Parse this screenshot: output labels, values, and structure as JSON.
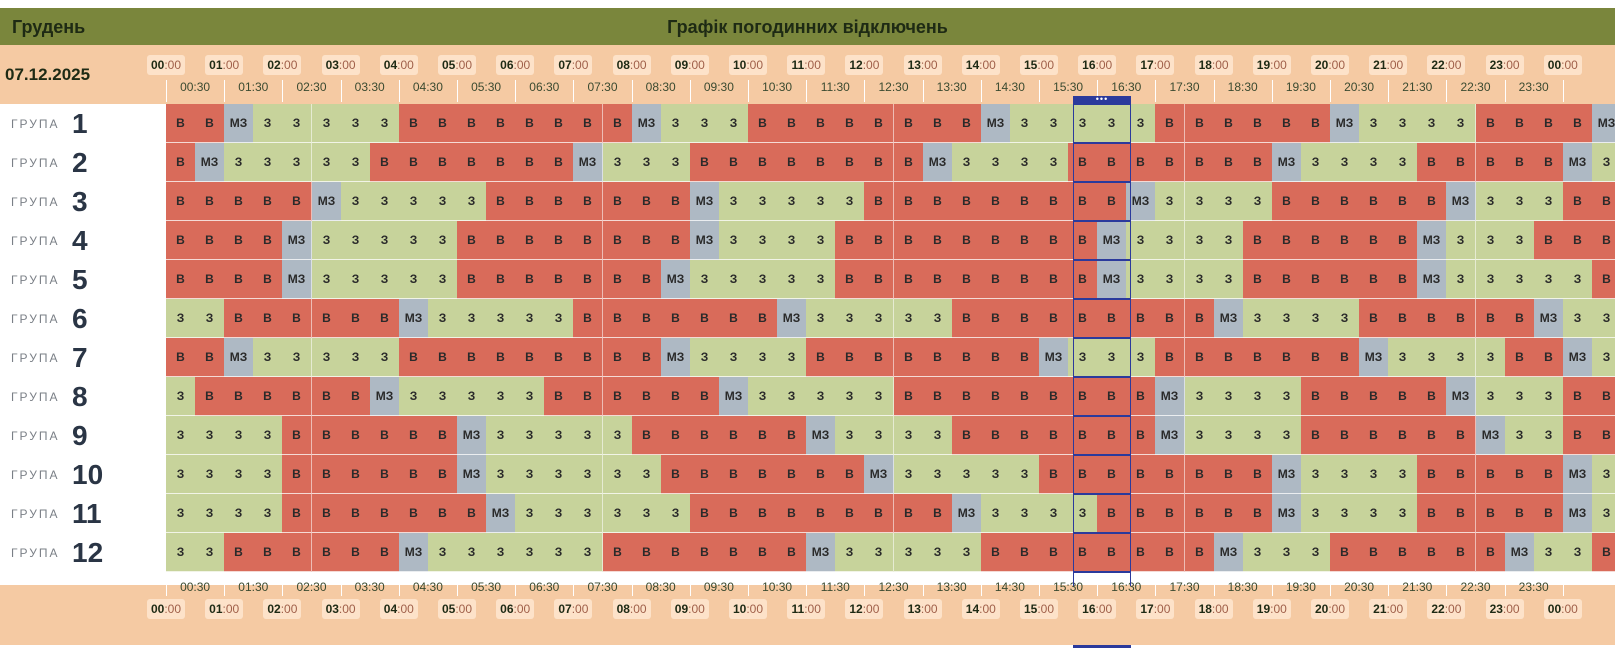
{
  "header": {
    "month": "Грудень",
    "title": "Графік погодинних відключень",
    "date": "07.12.2025"
  },
  "hours": [
    "00",
    "01",
    "02",
    "03",
    "04",
    "05",
    "06",
    "07",
    "08",
    "09",
    "10",
    "11",
    "12",
    "13",
    "14",
    "15",
    "16",
    "17",
    "18",
    "19",
    "20",
    "21",
    "22",
    "23",
    "00"
  ],
  "hour_suffix": ":00",
  "half_hours": [
    "00:30",
    "01:30",
    "02:30",
    "03:30",
    "04:30",
    "05:30",
    "06:30",
    "07:30",
    "08:30",
    "09:30",
    "10:30",
    "11:30",
    "12:30",
    "13:30",
    "14:30",
    "15:30",
    "16:30",
    "17:30",
    "18:30",
    "19:30",
    "20:30",
    "21:30",
    "22:30",
    "23:30"
  ],
  "group_word": "ГРУПА",
  "legend": {
    "В": "#d96b5a",
    "З": "#c7d39b",
    "МЗ": "#aeb9c4"
  },
  "current_slot_marker": "•••",
  "groups": [
    {
      "num": "1",
      "cells": [
        "В",
        "В",
        "МЗ",
        "З",
        "З",
        "З",
        "З",
        "З",
        "В",
        "В",
        "В",
        "В",
        "В",
        "В",
        "В",
        "В",
        "МЗ",
        "З",
        "З",
        "З",
        "В",
        "В",
        "В",
        "В",
        "В",
        "В",
        "В",
        "В",
        "МЗ",
        "З",
        "З",
        "З",
        "З",
        "З",
        "В",
        "В",
        "В",
        "В",
        "В",
        "В",
        "МЗ",
        "З",
        "З",
        "З",
        "З",
        "В",
        "В",
        "В",
        "В",
        "МЗ"
      ]
    },
    {
      "num": "2",
      "cells": [
        "В",
        "МЗ",
        "З",
        "З",
        "З",
        "З",
        "З",
        "В",
        "В",
        "В",
        "В",
        "В",
        "В",
        "В",
        "МЗ",
        "З",
        "З",
        "З",
        "В",
        "В",
        "В",
        "В",
        "В",
        "В",
        "В",
        "В",
        "МЗ",
        "З",
        "З",
        "З",
        "З",
        "В",
        "В",
        "В",
        "В",
        "В",
        "В",
        "В",
        "МЗ",
        "З",
        "З",
        "З",
        "З",
        "В",
        "В",
        "В",
        "В",
        "В",
        "МЗ",
        "З"
      ]
    },
    {
      "num": "3",
      "cells": [
        "В",
        "В",
        "В",
        "В",
        "В",
        "МЗ",
        "З",
        "З",
        "З",
        "З",
        "З",
        "В",
        "В",
        "В",
        "В",
        "В",
        "В",
        "В",
        "МЗ",
        "З",
        "З",
        "З",
        "З",
        "З",
        "В",
        "В",
        "В",
        "В",
        "В",
        "В",
        "В",
        "В",
        "В",
        "МЗ",
        "З",
        "З",
        "З",
        "З",
        "В",
        "В",
        "В",
        "В",
        "В",
        "В",
        "МЗ",
        "З",
        "З",
        "З",
        "В",
        "В"
      ]
    },
    {
      "num": "4",
      "cells": [
        "В",
        "В",
        "В",
        "В",
        "МЗ",
        "З",
        "З",
        "З",
        "З",
        "З",
        "В",
        "В",
        "В",
        "В",
        "В",
        "В",
        "В",
        "В",
        "МЗ",
        "З",
        "З",
        "З",
        "З",
        "В",
        "В",
        "В",
        "В",
        "В",
        "В",
        "В",
        "В",
        "В",
        "МЗ",
        "З",
        "З",
        "З",
        "З",
        "В",
        "В",
        "В",
        "В",
        "В",
        "В",
        "МЗ",
        "З",
        "З",
        "З",
        "В",
        "В",
        "В"
      ]
    },
    {
      "num": "5",
      "cells": [
        "В",
        "В",
        "В",
        "В",
        "МЗ",
        "З",
        "З",
        "З",
        "З",
        "З",
        "В",
        "В",
        "В",
        "В",
        "В",
        "В",
        "В",
        "МЗ",
        "З",
        "З",
        "З",
        "З",
        "З",
        "В",
        "В",
        "В",
        "В",
        "В",
        "В",
        "В",
        "В",
        "В",
        "МЗ",
        "З",
        "З",
        "З",
        "З",
        "В",
        "В",
        "В",
        "В",
        "В",
        "В",
        "МЗ",
        "З",
        "З",
        "З",
        "З",
        "З",
        "В"
      ]
    },
    {
      "num": "6",
      "cells": [
        "З",
        "З",
        "В",
        "В",
        "В",
        "В",
        "В",
        "В",
        "МЗ",
        "З",
        "З",
        "З",
        "З",
        "З",
        "В",
        "В",
        "В",
        "В",
        "В",
        "В",
        "В",
        "МЗ",
        "З",
        "З",
        "З",
        "З",
        "З",
        "В",
        "В",
        "В",
        "В",
        "В",
        "В",
        "В",
        "В",
        "В",
        "МЗ",
        "З",
        "З",
        "З",
        "З",
        "В",
        "В",
        "В",
        "В",
        "В",
        "В",
        "МЗ",
        "З",
        "З"
      ]
    },
    {
      "num": "7",
      "cells": [
        "В",
        "В",
        "МЗ",
        "З",
        "З",
        "З",
        "З",
        "З",
        "В",
        "В",
        "В",
        "В",
        "В",
        "В",
        "В",
        "В",
        "В",
        "МЗ",
        "З",
        "З",
        "З",
        "З",
        "В",
        "В",
        "В",
        "В",
        "В",
        "В",
        "В",
        "В",
        "МЗ",
        "З",
        "З",
        "З",
        "В",
        "В",
        "В",
        "В",
        "В",
        "В",
        "В",
        "МЗ",
        "З",
        "З",
        "З",
        "З",
        "В",
        "В",
        "МЗ",
        "З"
      ]
    },
    {
      "num": "8",
      "cells": [
        "З",
        "В",
        "В",
        "В",
        "В",
        "В",
        "В",
        "МЗ",
        "З",
        "З",
        "З",
        "З",
        "З",
        "В",
        "В",
        "В",
        "В",
        "В",
        "В",
        "МЗ",
        "З",
        "З",
        "З",
        "З",
        "З",
        "В",
        "В",
        "В",
        "В",
        "В",
        "В",
        "В",
        "В",
        "В",
        "МЗ",
        "З",
        "З",
        "З",
        "З",
        "В",
        "В",
        "В",
        "В",
        "В",
        "МЗ",
        "З",
        "З",
        "З",
        "В",
        "В"
      ]
    },
    {
      "num": "9",
      "cells": [
        "З",
        "З",
        "З",
        "З",
        "В",
        "В",
        "В",
        "В",
        "В",
        "В",
        "МЗ",
        "З",
        "З",
        "З",
        "З",
        "З",
        "В",
        "В",
        "В",
        "В",
        "В",
        "В",
        "МЗ",
        "З",
        "З",
        "З",
        "З",
        "В",
        "В",
        "В",
        "В",
        "В",
        "В",
        "В",
        "МЗ",
        "З",
        "З",
        "З",
        "З",
        "В",
        "В",
        "В",
        "В",
        "В",
        "В",
        "МЗ",
        "З",
        "З",
        "В",
        "В"
      ]
    },
    {
      "num": "10",
      "cells": [
        "З",
        "З",
        "З",
        "З",
        "В",
        "В",
        "В",
        "В",
        "В",
        "В",
        "МЗ",
        "З",
        "З",
        "З",
        "З",
        "З",
        "З",
        "В",
        "В",
        "В",
        "В",
        "В",
        "В",
        "В",
        "МЗ",
        "З",
        "З",
        "З",
        "З",
        "З",
        "В",
        "В",
        "В",
        "В",
        "В",
        "В",
        "В",
        "В",
        "МЗ",
        "З",
        "З",
        "З",
        "З",
        "В",
        "В",
        "В",
        "В",
        "В",
        "МЗ",
        "З"
      ]
    },
    {
      "num": "11",
      "cells": [
        "З",
        "З",
        "З",
        "З",
        "В",
        "В",
        "В",
        "В",
        "В",
        "В",
        "В",
        "МЗ",
        "З",
        "З",
        "З",
        "З",
        "З",
        "З",
        "В",
        "В",
        "В",
        "В",
        "В",
        "В",
        "В",
        "В",
        "В",
        "МЗ",
        "З",
        "З",
        "З",
        "З",
        "В",
        "В",
        "В",
        "В",
        "В",
        "В",
        "МЗ",
        "З",
        "З",
        "З",
        "З",
        "В",
        "В",
        "В",
        "В",
        "В",
        "МЗ",
        "З"
      ]
    },
    {
      "num": "12",
      "cells": [
        "З",
        "З",
        "В",
        "В",
        "В",
        "В",
        "В",
        "В",
        "МЗ",
        "З",
        "З",
        "З",
        "З",
        "З",
        "З",
        "В",
        "В",
        "В",
        "В",
        "В",
        "В",
        "В",
        "МЗ",
        "З",
        "З",
        "З",
        "З",
        "З",
        "В",
        "В",
        "В",
        "В",
        "В",
        "В",
        "В",
        "В",
        "МЗ",
        "З",
        "З",
        "З",
        "В",
        "В",
        "В",
        "В",
        "В",
        "В",
        "МЗ",
        "З",
        "З",
        "В"
      ]
    }
  ]
}
